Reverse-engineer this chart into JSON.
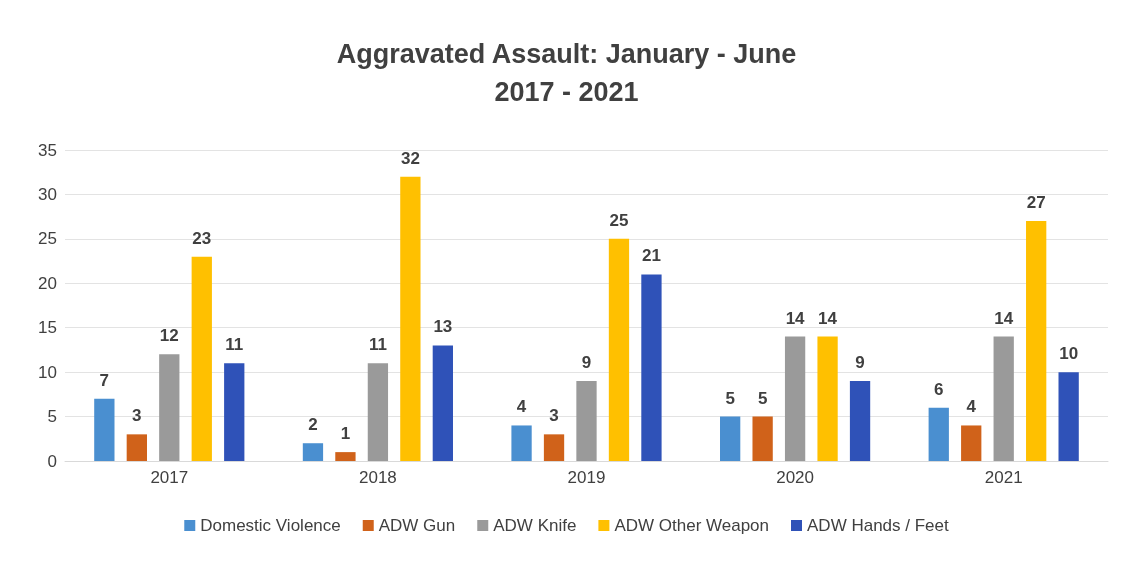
{
  "chart_data": {
    "type": "bar",
    "title": "Aggravated Assault: January - June\n2017 - 2021",
    "categories": [
      "2017",
      "2018",
      "2019",
      "2020",
      "2021"
    ],
    "series": [
      {
        "name": "Domestic Violence",
        "color": "#4a8fd0",
        "values": [
          7,
          2,
          4,
          5,
          6
        ]
      },
      {
        "name": "ADW Gun",
        "color": "#d0621a",
        "values": [
          3,
          1,
          3,
          5,
          4
        ]
      },
      {
        "name": "ADW Knife",
        "color": "#9a9a9a",
        "values": [
          12,
          11,
          9,
          14,
          14
        ]
      },
      {
        "name": "ADW Other Weapon",
        "color": "#ffc000",
        "values": [
          23,
          32,
          25,
          14,
          27
        ]
      },
      {
        "name": "ADW Hands / Feet",
        "color": "#2f52b8",
        "values": [
          11,
          13,
          21,
          9,
          10
        ]
      }
    ],
    "ylim": [
      0,
      35
    ],
    "yticks": [
      0,
      5,
      10,
      15,
      20,
      25,
      30,
      35
    ],
    "grid": "y",
    "legend": "bottom",
    "data_labels": true
  }
}
